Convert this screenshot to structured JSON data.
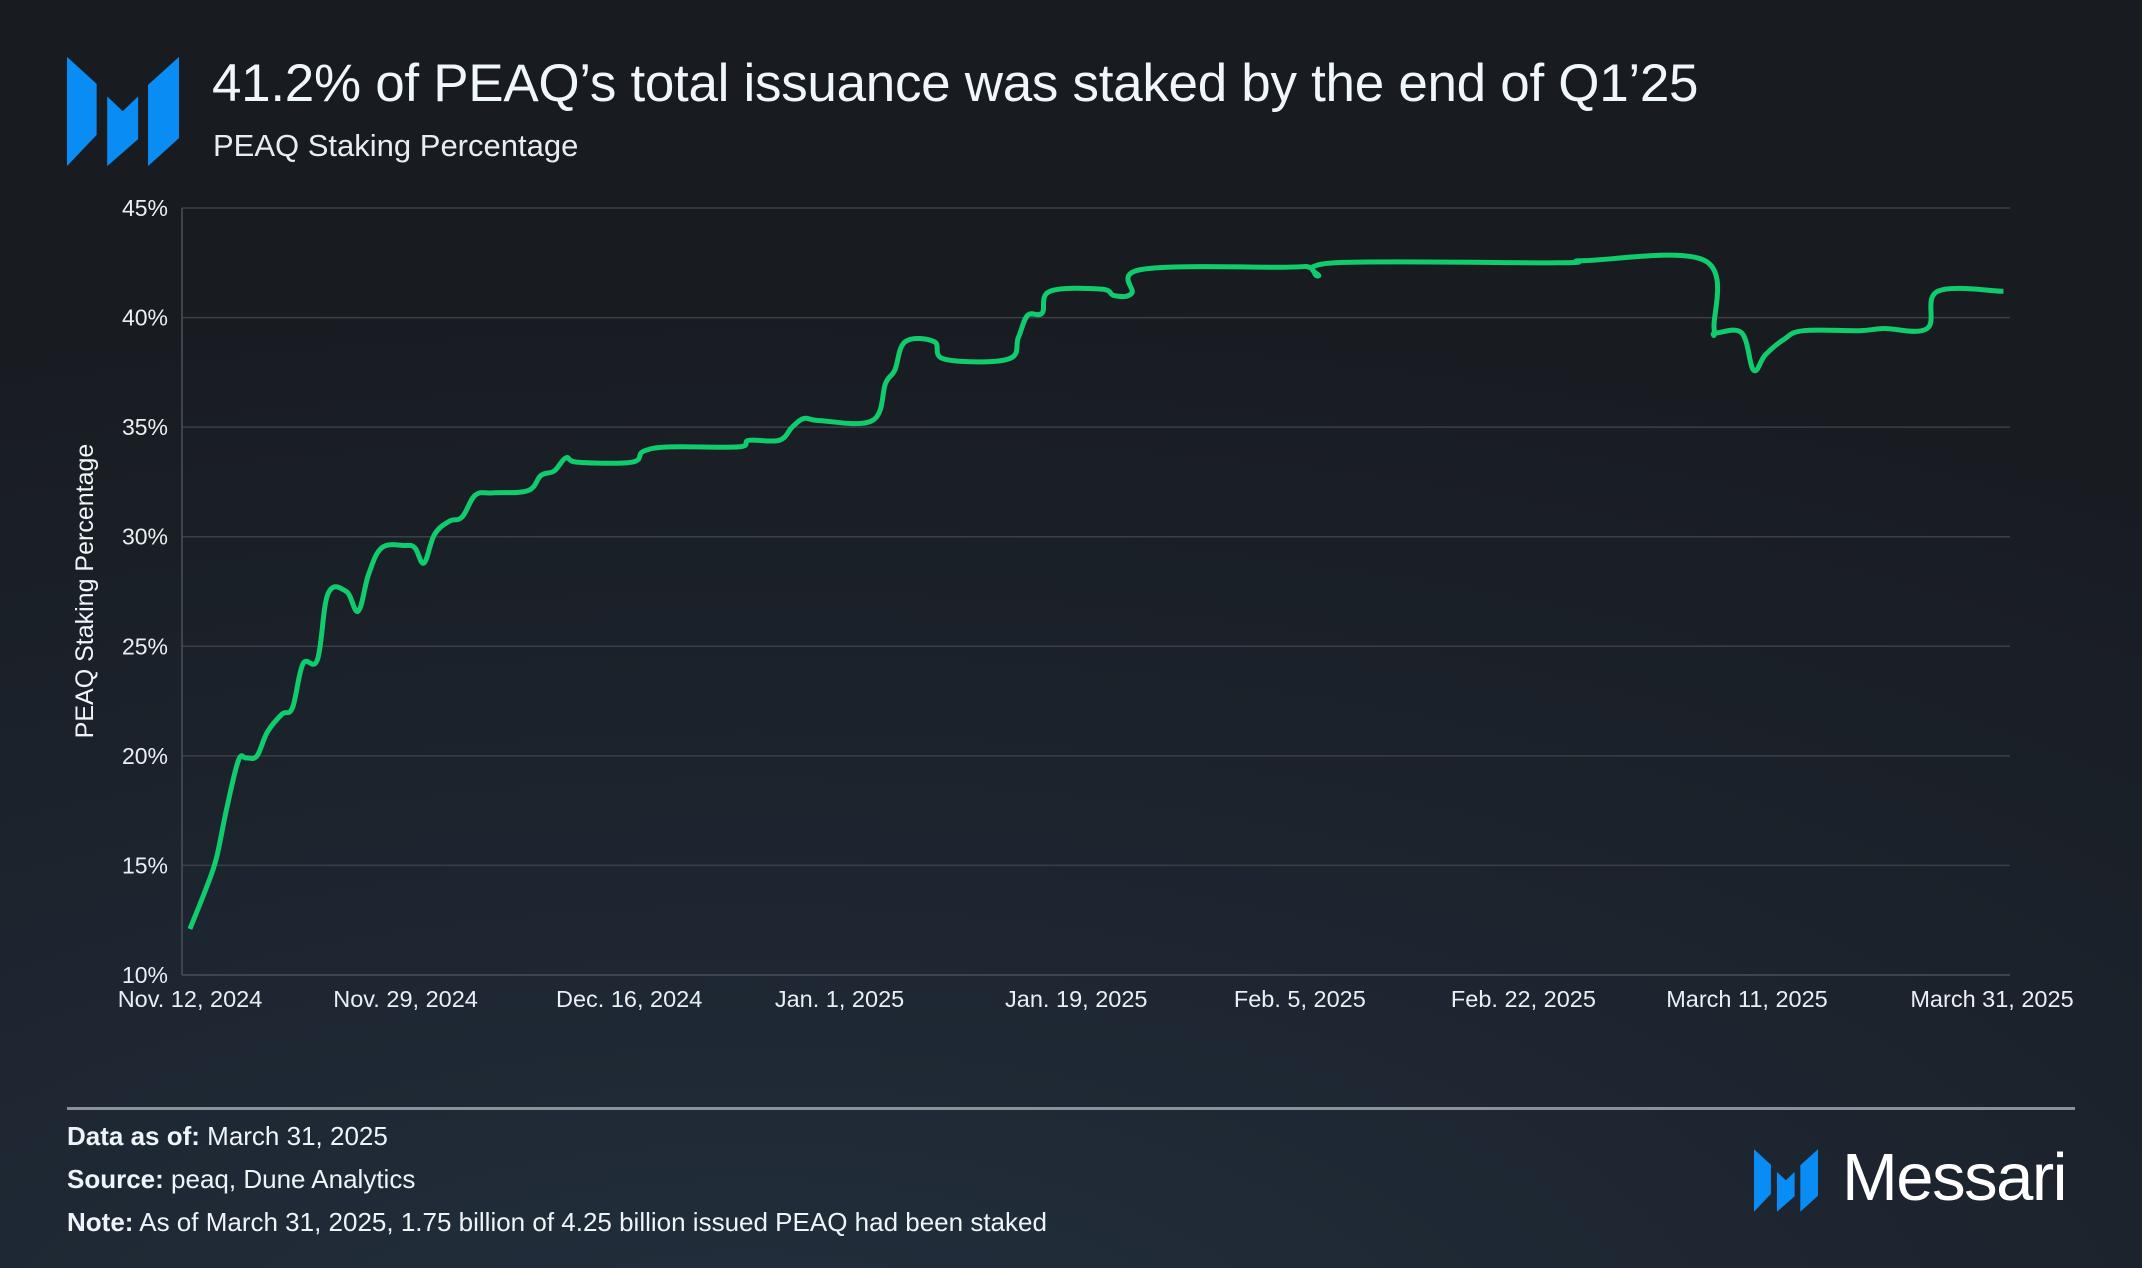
{
  "header": {
    "title": "41.2% of PEAQ’s total issuance was staked by the end of Q1’25",
    "subtitle": "PEAQ Staking Percentage",
    "logo_icon": "messari-m-icon"
  },
  "colors": {
    "accent": "#0a8cf5",
    "line": "#10cc6c",
    "grid": "#3b4047",
    "axis": "#4a5058",
    "divider": "#8b9199"
  },
  "chart_data": {
    "type": "line",
    "title": "PEAQ Staking Percentage",
    "xlabel": "",
    "ylabel": "PEAQ Staking Percentage",
    "x_unit": "days since Nov. 12, 2024",
    "xlim": [
      0,
      139
    ],
    "ylim": [
      10,
      45
    ],
    "grid": true,
    "legend": "none",
    "y_ticks": [
      10,
      15,
      20,
      25,
      30,
      35,
      40,
      45
    ],
    "y_tick_labels": [
      "10%",
      "15%",
      "20%",
      "25%",
      "30%",
      "35%",
      "40%",
      "45%"
    ],
    "x_ticks": [
      0,
      17,
      34,
      50,
      68,
      85,
      102,
      119,
      139
    ],
    "x_tick_labels": [
      "Nov. 12, 2024",
      "Nov. 29, 2024",
      "Dec. 16, 2024",
      "Jan. 1, 2025",
      "Jan. 19, 2025",
      "Feb. 5, 2025",
      "Feb. 22, 2025",
      "March 11, 2025",
      "March 31, 2025"
    ],
    "series": [
      {
        "name": "PEAQ Staking Percentage",
        "x": [
          0.6,
          1.8,
          2.6,
          3.4,
          4.3,
          4.9,
          5.7,
          6.5,
          7.6,
          8.4,
          9.2,
          10.3,
          11.1,
          12.5,
          13.4,
          14.2,
          15.2,
          16.9,
          17.7,
          18.4,
          19.2,
          20.3,
          21.3,
          22.3,
          23.6,
          26.3,
          27.3,
          28.3,
          29.2,
          30.1,
          34.2,
          35.1,
          37.1,
          42.3,
          43.1,
          45.4,
          46.4,
          47.3,
          48.5,
          52.5,
          53.5,
          54.2,
          55.0,
          57.2,
          58.0,
          62.8,
          63.6,
          64.3,
          65.4,
          66.0,
          69.9,
          70.9,
          72.2,
          73.0,
          83.8,
          85.7,
          86.4,
          87.7,
          104.6,
          106.7,
          115.8,
          116.5,
          116.6,
          118.6,
          119.5,
          120.4,
          121.8,
          123.3,
          127.5,
          129.4,
          132.7,
          133.5,
          138.5
        ],
        "y": [
          12.1,
          13.9,
          15.3,
          17.6,
          19.8,
          19.9,
          20.0,
          21.1,
          21.9,
          22.2,
          24.2,
          24.4,
          27.4,
          27.5,
          26.6,
          28.3,
          29.5,
          29.6,
          29.5,
          28.8,
          30.1,
          30.7,
          30.9,
          31.9,
          32.0,
          32.1,
          32.8,
          33.0,
          33.6,
          33.4,
          33.4,
          33.9,
          34.1,
          34.1,
          34.4,
          34.4,
          35.0,
          35.4,
          35.3,
          35.3,
          37.0,
          37.6,
          38.9,
          38.9,
          38.1,
          38.1,
          39.1,
          40.1,
          40.2,
          41.2,
          41.3,
          41.0,
          41.1,
          42.2,
          42.3,
          42.3,
          41.9,
          42.5,
          42.5,
          42.6,
          42.6,
          39.5,
          39.3,
          39.3,
          37.6,
          38.3,
          39.0,
          39.4,
          39.4,
          39.5,
          39.5,
          41.2,
          41.2
        ]
      }
    ]
  },
  "footer": {
    "data_as_of_label": "Data as of:",
    "data_as_of_value": "March 31, 2025",
    "source_label": "Source:",
    "source_value": "peaq, Dune Analytics",
    "note_label": "Note:",
    "note_value": "As of March 31, 2025, 1.75 billion of 4.25 billion issued PEAQ had been staked",
    "brand_name": "Messari",
    "brand_icon": "messari-m-icon"
  }
}
